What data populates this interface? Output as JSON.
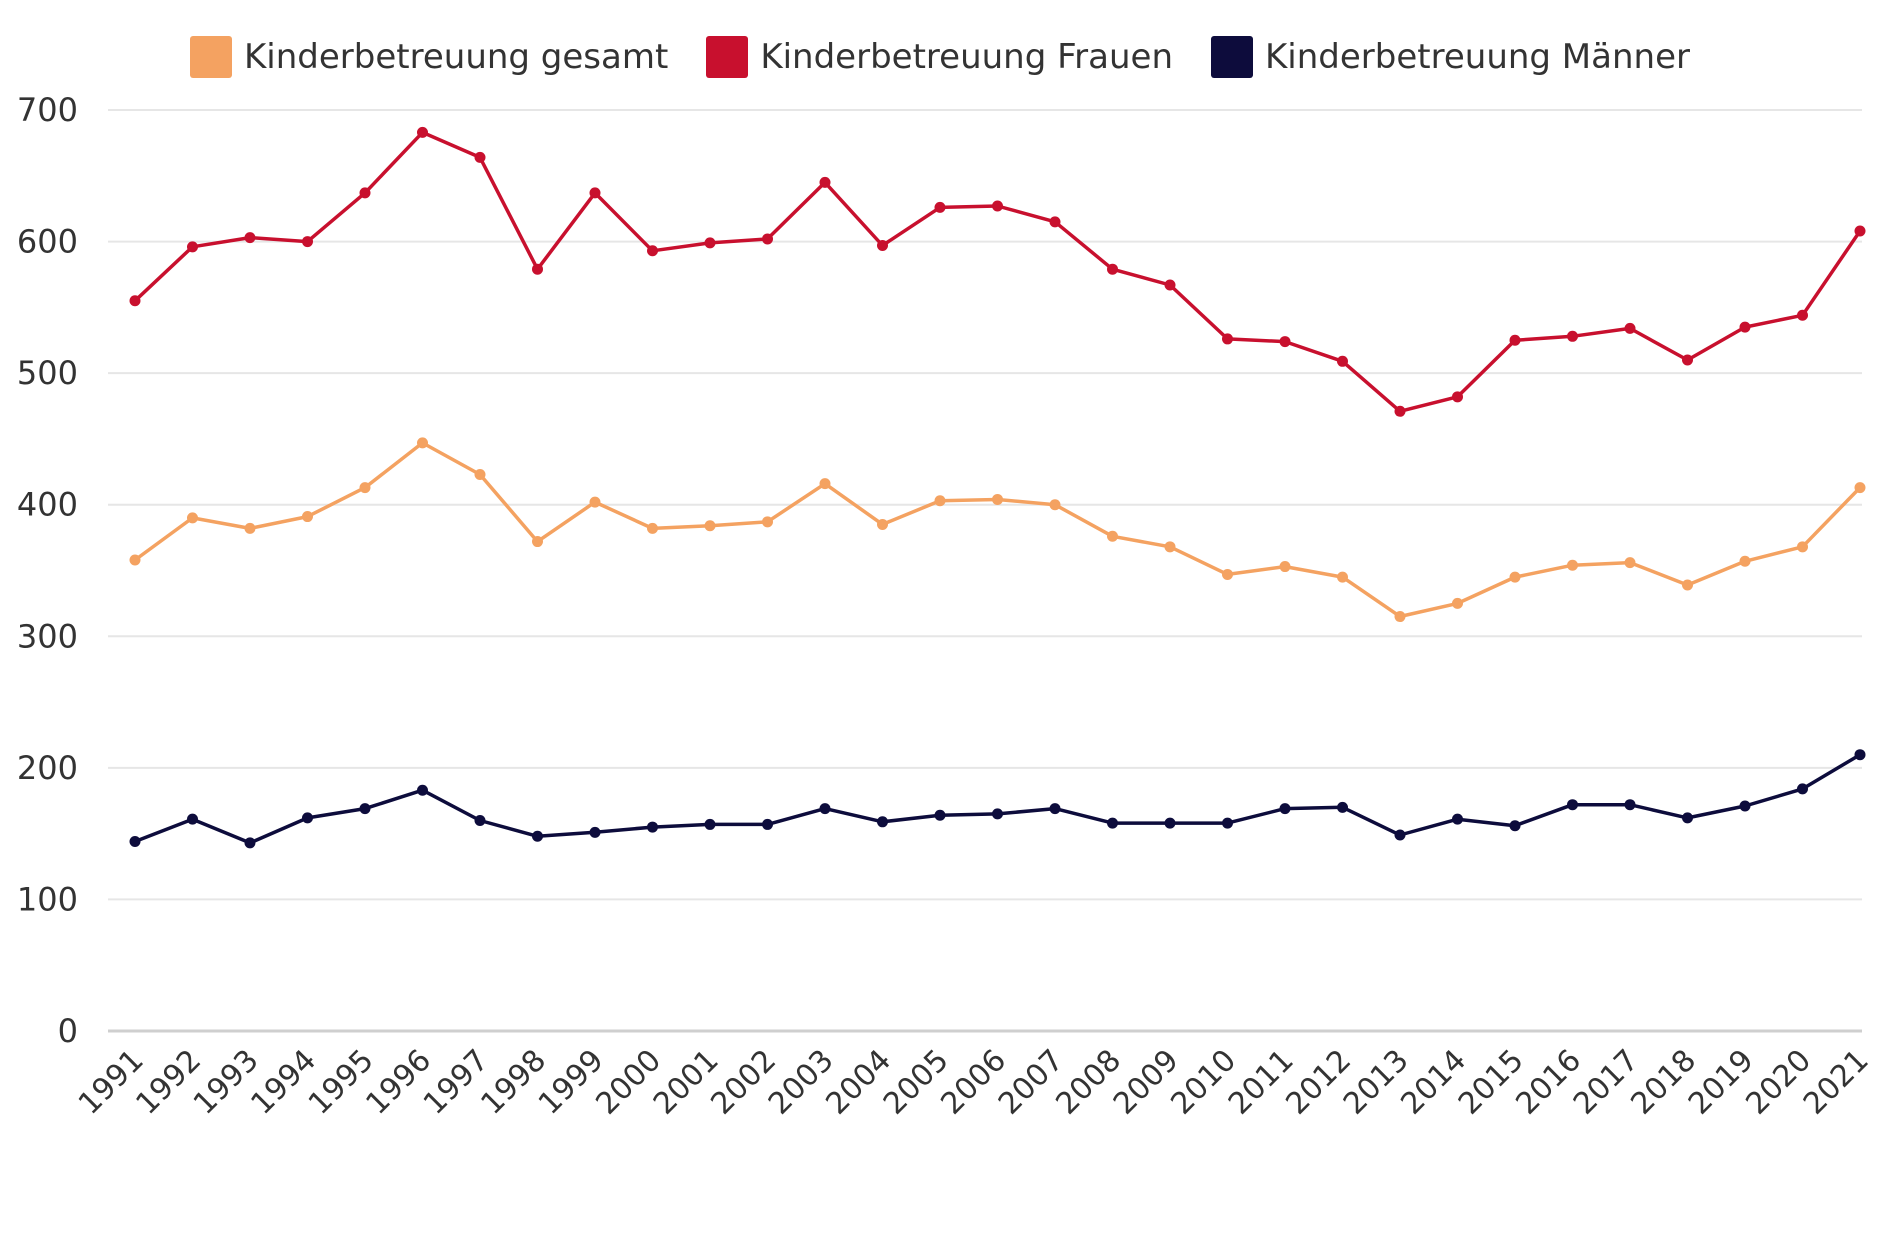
{
  "chart_data": {
    "type": "line",
    "title": "",
    "xlabel": "",
    "ylabel": "",
    "ylim": [
      0,
      700
    ],
    "yticks": [
      0,
      100,
      200,
      300,
      400,
      500,
      600,
      700
    ],
    "grid": true,
    "legend_position": "top-center",
    "categories": [
      "1991",
      "1992",
      "1993",
      "1994",
      "1995",
      "1996",
      "1997",
      "1998",
      "1999",
      "2000",
      "2001",
      "2002",
      "2003",
      "2004",
      "2005",
      "2006",
      "2007",
      "2008",
      "2009",
      "2010",
      "2011",
      "2012",
      "2013",
      "2014",
      "2015",
      "2016",
      "2017",
      "2018",
      "2019",
      "2020",
      "2021"
    ],
    "series": [
      {
        "name": "Kinderbetreuung gesamt",
        "color": "#f4a261",
        "values": [
          358,
          390,
          382,
          391,
          413,
          447,
          423,
          372,
          402,
          382,
          384,
          387,
          416,
          385,
          403,
          404,
          400,
          376,
          368,
          347,
          353,
          345,
          315,
          325,
          345,
          354,
          356,
          339,
          357,
          368,
          413
        ]
      },
      {
        "name": "Kinderbetreuung Frauen",
        "color": "#c8102e",
        "values": [
          555,
          596,
          603,
          600,
          637,
          683,
          664,
          579,
          637,
          593,
          599,
          602,
          645,
          597,
          626,
          627,
          615,
          579,
          567,
          526,
          524,
          509,
          471,
          482,
          525,
          528,
          534,
          510,
          535,
          544,
          608
        ]
      },
      {
        "name": "Kinderbetreuung Männer",
        "color": "#0d0c3c",
        "values": [
          144,
          161,
          143,
          162,
          169,
          183,
          160,
          148,
          151,
          155,
          157,
          157,
          169,
          159,
          164,
          165,
          169,
          158,
          158,
          158,
          169,
          170,
          149,
          161,
          156,
          172,
          172,
          162,
          171,
          184,
          210
        ]
      }
    ]
  }
}
